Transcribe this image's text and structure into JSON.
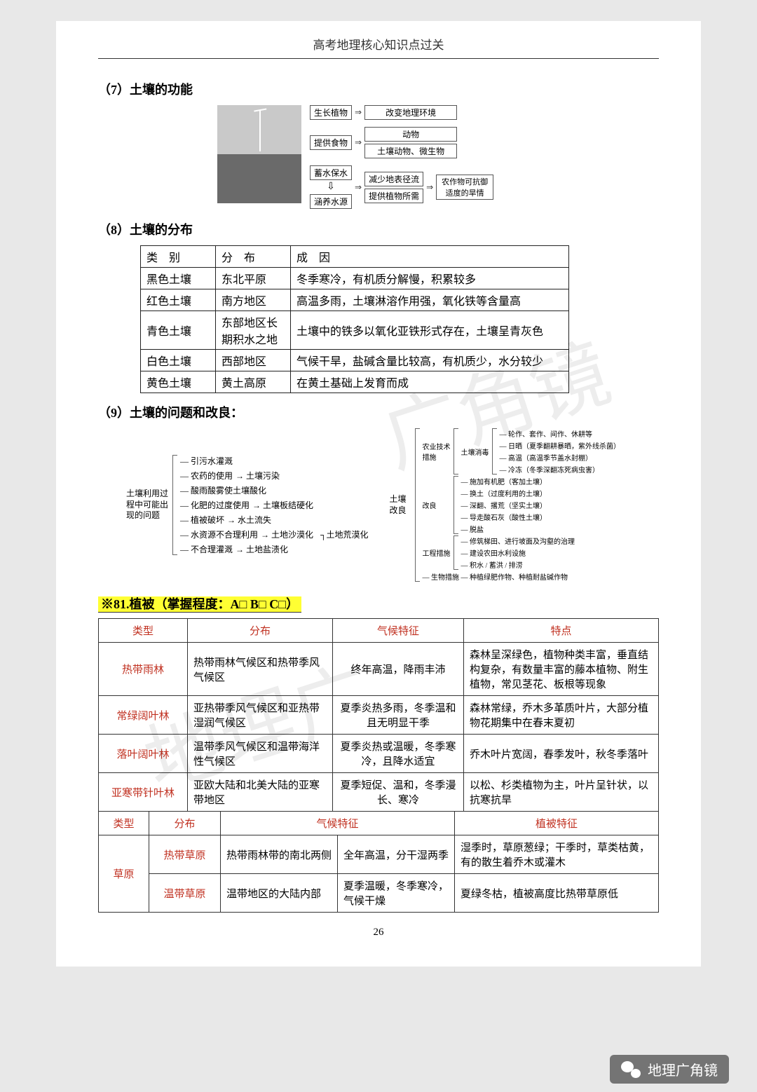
{
  "header": "高考地理核心知识点过关",
  "page_num": "26",
  "s7": {
    "title": "（7）土壤的功能",
    "r1_a": "生长植物",
    "r1_b": "改变地理环境",
    "r2_a": "提供食物",
    "r2_b": "动物",
    "r2_c": "土壤动物、微生物",
    "r3_a": "蓄水保水",
    "r3_b": "减少地表径流",
    "r3_c": "提供植物所需",
    "r3_d": "农作物可抗御适度的旱情",
    "r4": "涵养水源"
  },
  "s8": {
    "title": "（8）土壤的分布",
    "h1": "类 别",
    "h2": "分 布",
    "h3": "成   因",
    "rows": [
      {
        "a": "黑色土壤",
        "b": "东北平原",
        "c": "冬季寒冷，有机质分解慢，积累较多"
      },
      {
        "a": "红色土壤",
        "b": "南方地区",
        "c": "高温多雨，土壤淋溶作用强，氧化铁等含量高"
      },
      {
        "a": "青色土壤",
        "b": "东部地区长期积水之地",
        "c": "土壤中的铁多以氧化亚铁形式存在，土壤呈青灰色"
      },
      {
        "a": "白色土壤",
        "b": "西部地区",
        "c": "气候干旱，盐碱含量比较高，有机质少，水分较少"
      },
      {
        "a": "黄色土壤",
        "b": "黄土高原",
        "c": "在黄土基础上发育而成"
      }
    ]
  },
  "s9": {
    "title": "（9）土壤的问题和改良：",
    "left_label": "土壤利用过程中可能出现的问题",
    "left": [
      {
        "a": "引污水灌溉"
      },
      {
        "a": "农药的使用",
        "b": "土壤污染"
      },
      {
        "a": "酸雨酸雾使土壤酸化"
      },
      {
        "a": "化肥的过度使用",
        "b": "土壤板结硬化"
      },
      {
        "a": "植被破坏",
        "b": "水土流失"
      },
      {
        "a": "水资源不合理利用",
        "b": "土地沙漠化",
        "c": "土地荒漠化"
      },
      {
        "a": "不合理灌溉",
        "b": "土地盐渍化"
      }
    ],
    "right_root": "土壤改良",
    "right": {
      "g1": {
        "label": "农业技术措施",
        "sub": "土壤消毒",
        "items": [
          "轮作、套作、间作、休耕等",
          "日晒（夏季翻耕暴晒，紫外线杀菌）",
          "高温（高温季节盖水封棚）",
          "冷冻（冬季深翻冻死病虫害）"
        ]
      },
      "g2": {
        "label": "改良",
        "items": [
          "施加有机肥（客加土壤）",
          "换土（过度利用的土壤）",
          "深翻、撂荒（坚实土壤）",
          "导走酸石灰（酸性土壤）",
          "脱盐"
        ]
      },
      "g3": {
        "label": "工程措施",
        "items": [
          "修筑梯田、进行坡面及沟壑的治理",
          "建设农田水利设施",
          "积水 / 蓄洪 / 排涝"
        ]
      },
      "g4": {
        "label": "生物措施",
        "val": "种植绿肥作物、种植耐盐碱作物"
      }
    }
  },
  "s81hdr": {
    "pre": "※81.植被（掌握程度：A□ B□ C□）"
  },
  "tblB": {
    "h": [
      "类型",
      "分布",
      "气候特征",
      "特点"
    ],
    "rows": [
      {
        "a": "热带雨林",
        "b": "热带雨林气候区和热带季风气候区",
        "c": "终年高温，降雨丰沛",
        "d": "森林呈深绿色，植物种类丰富，垂直结构复杂，有数量丰富的藤本植物、附生植物，常见茎花、板根等现象"
      },
      {
        "a": "常绿阔叶林",
        "b": "亚热带季风气候区和亚热带湿润气候区",
        "c": "夏季炎热多雨，冬季温和且无明显干季",
        "d": "森林常绿，乔木多革质叶片，大部分植物花期集中在春末夏初"
      },
      {
        "a": "落叶阔叶林",
        "b": "温带季风气候区和温带海洋性气候区",
        "c": "夏季炎热或温暖，冬季寒冷，且降水适宜",
        "d": "乔木叶片宽阔，春季发叶，秋冬季落叶"
      },
      {
        "a": "亚寒带针叶林",
        "b": "亚欧大陆和北美大陆的亚寒带地区",
        "c": "夏季短促、温和，冬季漫长、寒冷",
        "d": "以松、杉类植物为主，叶片呈针状，以抗寒抗旱"
      }
    ]
  },
  "tblC": {
    "h": [
      "类型",
      "分布",
      "",
      "气候特征",
      "植被特征"
    ],
    "row_label": "草原",
    "rows": [
      {
        "a": "热带草原",
        "b": "热带雨林带的南北两侧",
        "c": "全年高温，分干湿两季",
        "d": "湿季时，草原葱绿；干季时，草类枯黄，有的散生着乔木或灌木"
      },
      {
        "a": "温带草原",
        "b": "温带地区的大陆内部",
        "c": "夏季温暖，冬季寒冷，气候干燥",
        "d": "夏绿冬枯，植被高度比热带草原低"
      }
    ]
  },
  "footer": "地理广角镜"
}
